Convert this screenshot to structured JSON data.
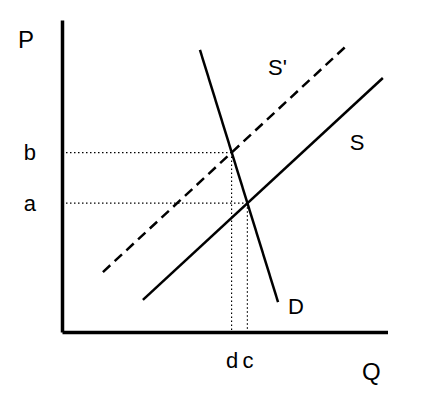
{
  "chart_data": {
    "type": "line",
    "x_label": "Q",
    "y_label": "P",
    "xlim": [
      0,
      10.5
    ],
    "ylim": [
      0,
      10
    ],
    "xticks": [
      {
        "value": 5.47,
        "label": "d"
      },
      {
        "value": 5.98,
        "label": "c"
      }
    ],
    "yticks": [
      {
        "value": 4.13,
        "label": "a"
      },
      {
        "value": 5.75,
        "label": "b"
      }
    ],
    "grid": false,
    "series": [
      {
        "name": "S",
        "color": "#000000",
        "line_style": "solid",
        "x": [
          2.61,
          10.35
        ],
        "values": [
          1.03,
          8.14
        ]
      },
      {
        "name": "S'",
        "color": "#000000",
        "line_style": "dashed",
        "x": [
          1.32,
          9.13
        ],
        "values": [
          1.92,
          9.13
        ]
      },
      {
        "name": "D",
        "color": "#000000",
        "line_style": "solid",
        "x": [
          4.45,
          6.97
        ],
        "values": [
          9.04,
          0.96
        ]
      }
    ]
  }
}
